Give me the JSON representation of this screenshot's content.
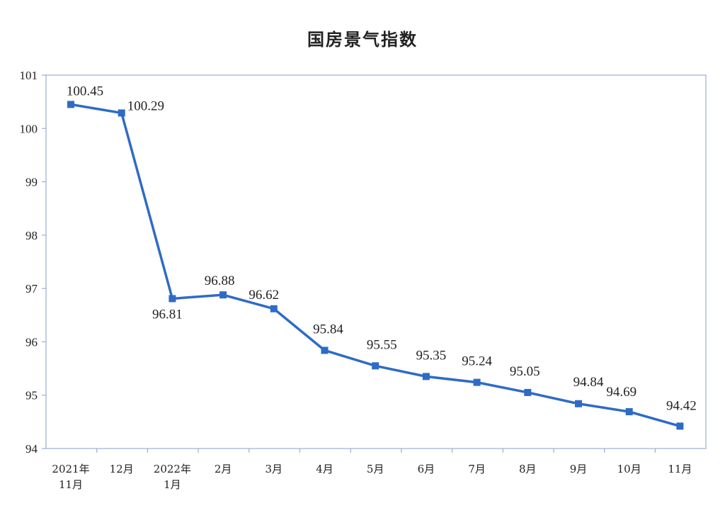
{
  "chart_data": {
    "type": "line",
    "title": "国房景气指数",
    "xlabel": "",
    "ylabel": "",
    "ylim": [
      94,
      101
    ],
    "yticks": [
      94,
      95,
      96,
      97,
      98,
      99,
      100,
      101
    ],
    "grid": false,
    "line_color": "#2e6bc6",
    "categories": [
      [
        "2021年",
        "11月"
      ],
      [
        "12月"
      ],
      [
        "2022年",
        "1月"
      ],
      [
        "2月"
      ],
      [
        "3月"
      ],
      [
        "4月"
      ],
      [
        "5月"
      ],
      [
        "6月"
      ],
      [
        "7月"
      ],
      [
        "8月"
      ],
      [
        "9月"
      ],
      [
        "10月"
      ],
      [
        "11月"
      ]
    ],
    "values": [
      100.45,
      100.29,
      96.81,
      96.88,
      96.62,
      95.84,
      95.55,
      95.35,
      95.24,
      95.05,
      94.84,
      94.69,
      94.42
    ],
    "data_labels": [
      "100.45",
      "100.29",
      "96.81",
      "96.88",
      "96.62",
      "95.84",
      "95.55",
      "95.35",
      "95.24",
      "95.05",
      "94.84",
      "94.69",
      "94.42"
    ]
  }
}
